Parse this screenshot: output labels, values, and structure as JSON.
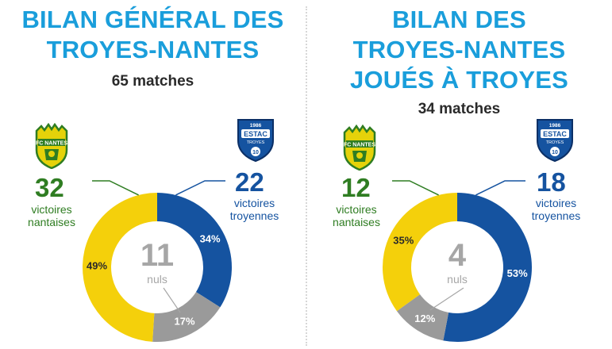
{
  "colors": {
    "title": "#1a9edb",
    "nantes_yellow": "#f4d00b",
    "troyes_blue": "#1553a0",
    "draw_grey": "#9a9a9a",
    "nantes_green": "#2f7d22"
  },
  "crests": {
    "nantes": {
      "text": "FC NANTES",
      "icon": "fc-nantes-crest"
    },
    "troyes": {
      "top": "1986",
      "name": "ESTAC",
      "sub": "TROYES",
      "num": "10",
      "icon": "estac-troyes-crest"
    }
  },
  "chart_data": [
    {
      "type": "pie",
      "title": [
        "BILAN GÉNÉRAL DES",
        "TROYES-NANTES"
      ],
      "subtitle": "65 matches",
      "slices": [
        {
          "key": "troyes",
          "count": "22",
          "label": [
            "victoires",
            "troyennes"
          ],
          "percent": 34,
          "pct_label": "34%",
          "color": "#1553a0"
        },
        {
          "key": "nuls",
          "count": "11",
          "label": [
            "nuls"
          ],
          "percent": 17,
          "pct_label": "17%",
          "color": "#9a9a9a"
        },
        {
          "key": "nantes",
          "count": "32",
          "label": [
            "victoires",
            "nantaises"
          ],
          "percent": 49,
          "pct_label": "49%",
          "color": "#f4d00b"
        }
      ]
    },
    {
      "type": "pie",
      "title": [
        "BILAN DES",
        "TROYES-NANTES",
        "JOUÉS À TROYES"
      ],
      "subtitle": "34 matches",
      "slices": [
        {
          "key": "troyes",
          "count": "18",
          "label": [
            "victoires",
            "troyennes"
          ],
          "percent": 53,
          "pct_label": "53%",
          "color": "#1553a0"
        },
        {
          "key": "nuls",
          "count": "4",
          "label": [
            "nuls"
          ],
          "percent": 12,
          "pct_label": "12%",
          "color": "#9a9a9a"
        },
        {
          "key": "nantes",
          "count": "12",
          "label": [
            "victoires",
            "nantaises"
          ],
          "percent": 35,
          "pct_label": "35%",
          "color": "#f4d00b"
        }
      ]
    }
  ]
}
